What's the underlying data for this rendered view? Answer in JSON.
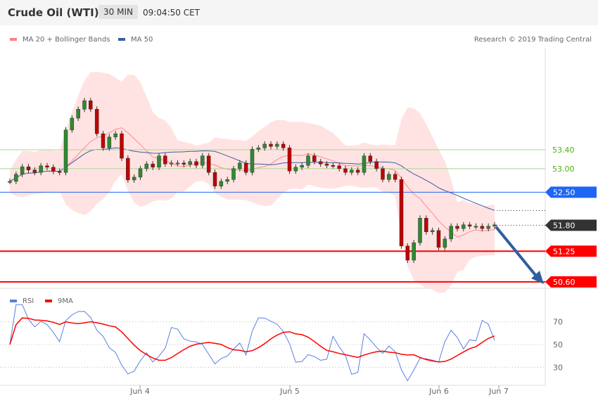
{
  "header": {
    "title": "Crude Oil (WTI)",
    "timeframe": "30 MIN",
    "time": "09:04:50 CET"
  },
  "legend": {
    "ma20_label": "MA 20 + Bollinger Bands",
    "ma50_label": "MA 50",
    "ma20_color": "#ff6b6b",
    "ma50_color": "#3a5fa0",
    "copyright": "Research © 2019 Trading Central"
  },
  "rsi_legend": {
    "rsi_label": "RSI",
    "ma_label": "9MA",
    "rsi_color": "#5b7fe0",
    "ma_color": "#ff0000"
  },
  "chart_data": [
    {
      "type": "candlestick",
      "title": "Crude Oil (WTI)",
      "ylim": [
        50.6,
        55.5
      ],
      "closes": [
        52.73,
        52.88,
        53.04,
        52.97,
        52.92,
        53.06,
        53.03,
        52.94,
        52.92,
        53.82,
        54.07,
        54.26,
        54.44,
        54.26,
        53.74,
        53.44,
        53.67,
        53.74,
        53.22,
        52.76,
        52.82,
        53.0,
        53.1,
        53.03,
        53.27,
        53.1,
        53.12,
        53.12,
        53.09,
        53.15,
        53.07,
        53.27,
        52.92,
        52.63,
        52.73,
        52.77,
        53.0,
        53.12,
        52.92,
        53.41,
        53.44,
        53.52,
        53.47,
        53.52,
        53.44,
        52.95,
        53.03,
        53.07,
        53.27,
        53.15,
        53.1,
        53.07,
        53.06,
        53.0,
        52.92,
        52.97,
        52.92,
        53.27,
        53.15,
        53.0,
        52.77,
        52.88,
        52.77,
        51.36,
        51.06,
        51.43,
        51.95,
        51.66,
        51.69,
        51.33,
        51.51,
        51.78,
        51.73,
        51.81,
        51.78,
        51.78,
        51.73,
        51.78,
        51.81
      ],
      "levels": [
        {
          "value": "53.40",
          "type": "resistance",
          "color": "#a8d890",
          "text_color": "#4caf10"
        },
        {
          "value": "53.00",
          "type": "resistance",
          "color": "#a8d890",
          "text_color": "#4caf10"
        },
        {
          "value": "52.50",
          "type": "pivot",
          "color": "#1e66f5"
        },
        {
          "value": "51.80",
          "type": "last",
          "color": "#333333"
        },
        {
          "value": "51.25",
          "type": "support",
          "color": "#ff0000"
        },
        {
          "value": "50.60",
          "type": "support",
          "color": "#ff0000"
        }
      ],
      "x_ticks": [
        "Jun 4",
        "Jun 5",
        "Jun 6",
        "Jun 7"
      ],
      "arrow": "down",
      "arrow_color": "#2d5fa0"
    },
    {
      "type": "line",
      "title": "RSI",
      "ylim": [
        15,
        85
      ],
      "y_ticks": [
        "70",
        "50",
        "30"
      ]
    }
  ]
}
